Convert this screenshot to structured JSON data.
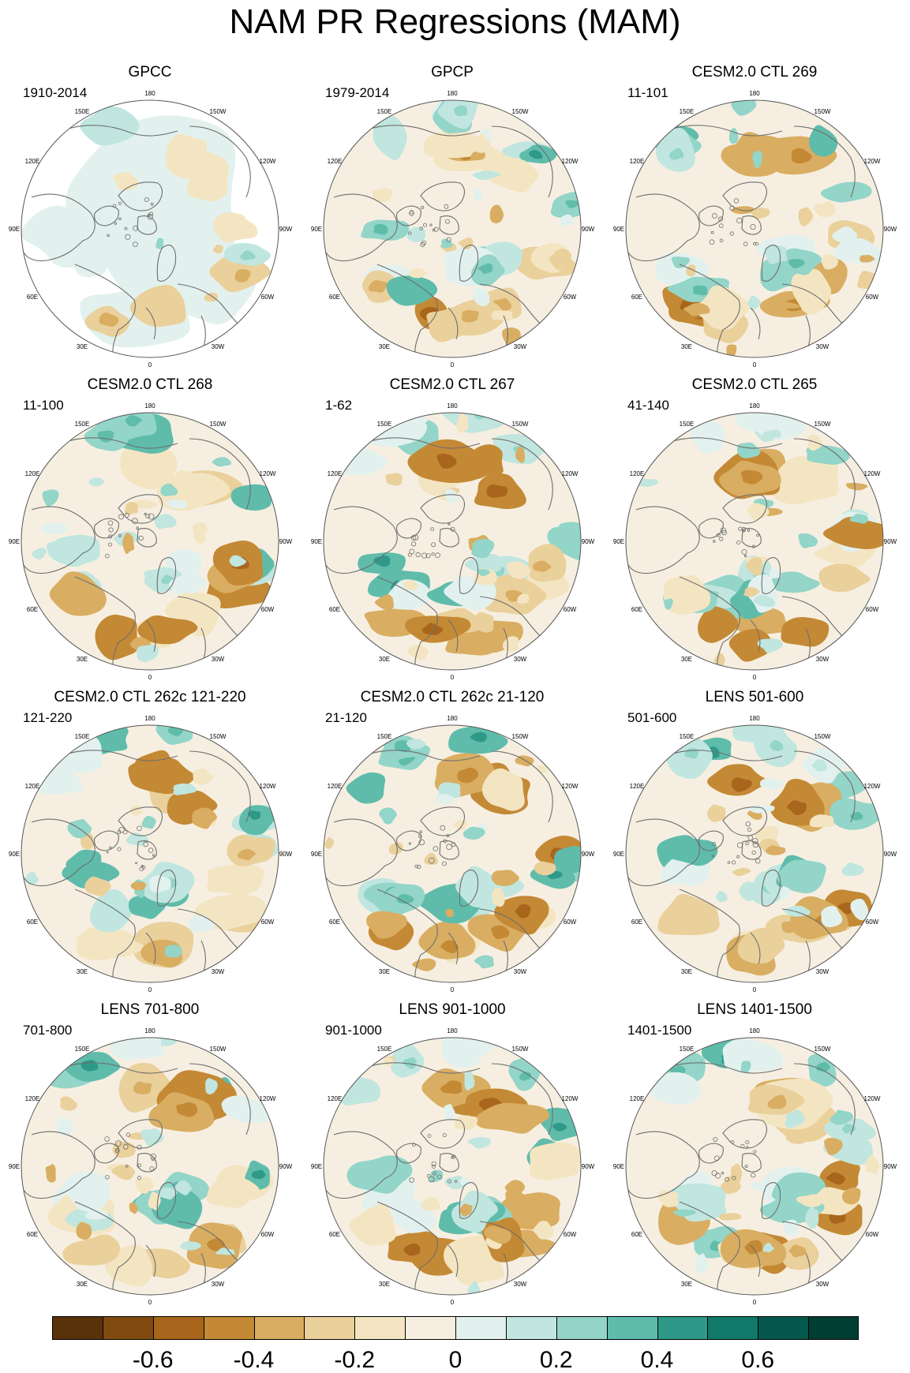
{
  "title": "NAM PR Regressions (MAM)",
  "longitude_labels": [
    "180",
    "150E",
    "120E",
    "90E",
    "60E",
    "30E",
    "0",
    "30W",
    "60W",
    "90W",
    "120W",
    "150W"
  ],
  "panels": [
    {
      "title": "GPCC",
      "period": "1910-2014",
      "land_only": true
    },
    {
      "title": "GPCP",
      "period": "1979-2014"
    },
    {
      "title": "CESM2.0 CTL 269",
      "period": "11-101"
    },
    {
      "title": "CESM2.0 CTL 268",
      "period": "11-100"
    },
    {
      "title": "CESM2.0 CTL 267",
      "period": "1-62"
    },
    {
      "title": "CESM2.0 CTL 265",
      "period": "41-140"
    },
    {
      "title": "CESM2.0 CTL 262c 121-220",
      "period": "121-220"
    },
    {
      "title": "CESM2.0 CTL 262c 21-120",
      "period": "21-120"
    },
    {
      "title": "LENS 501-600",
      "period": "501-600"
    },
    {
      "title": "LENS 701-800",
      "period": "701-800"
    },
    {
      "title": "LENS 901-1000",
      "period": "901-1000"
    },
    {
      "title": "LENS 1401-1500",
      "period": "1401-1500"
    }
  ],
  "colorbar": {
    "colors": [
      "#5a3209",
      "#814b10",
      "#a8661d",
      "#c48935",
      "#d9ae62",
      "#ead09b",
      "#f4e5c2",
      "#f6efe1",
      "#e2f1ee",
      "#c0e6df",
      "#93d5c8",
      "#5fbcab",
      "#2f9989",
      "#127a6a",
      "#04594c",
      "#003e33"
    ],
    "labels": [
      "-0.6",
      "-0.4",
      "-0.2",
      "0",
      "0.2",
      "0.4",
      "0.6"
    ]
  }
}
